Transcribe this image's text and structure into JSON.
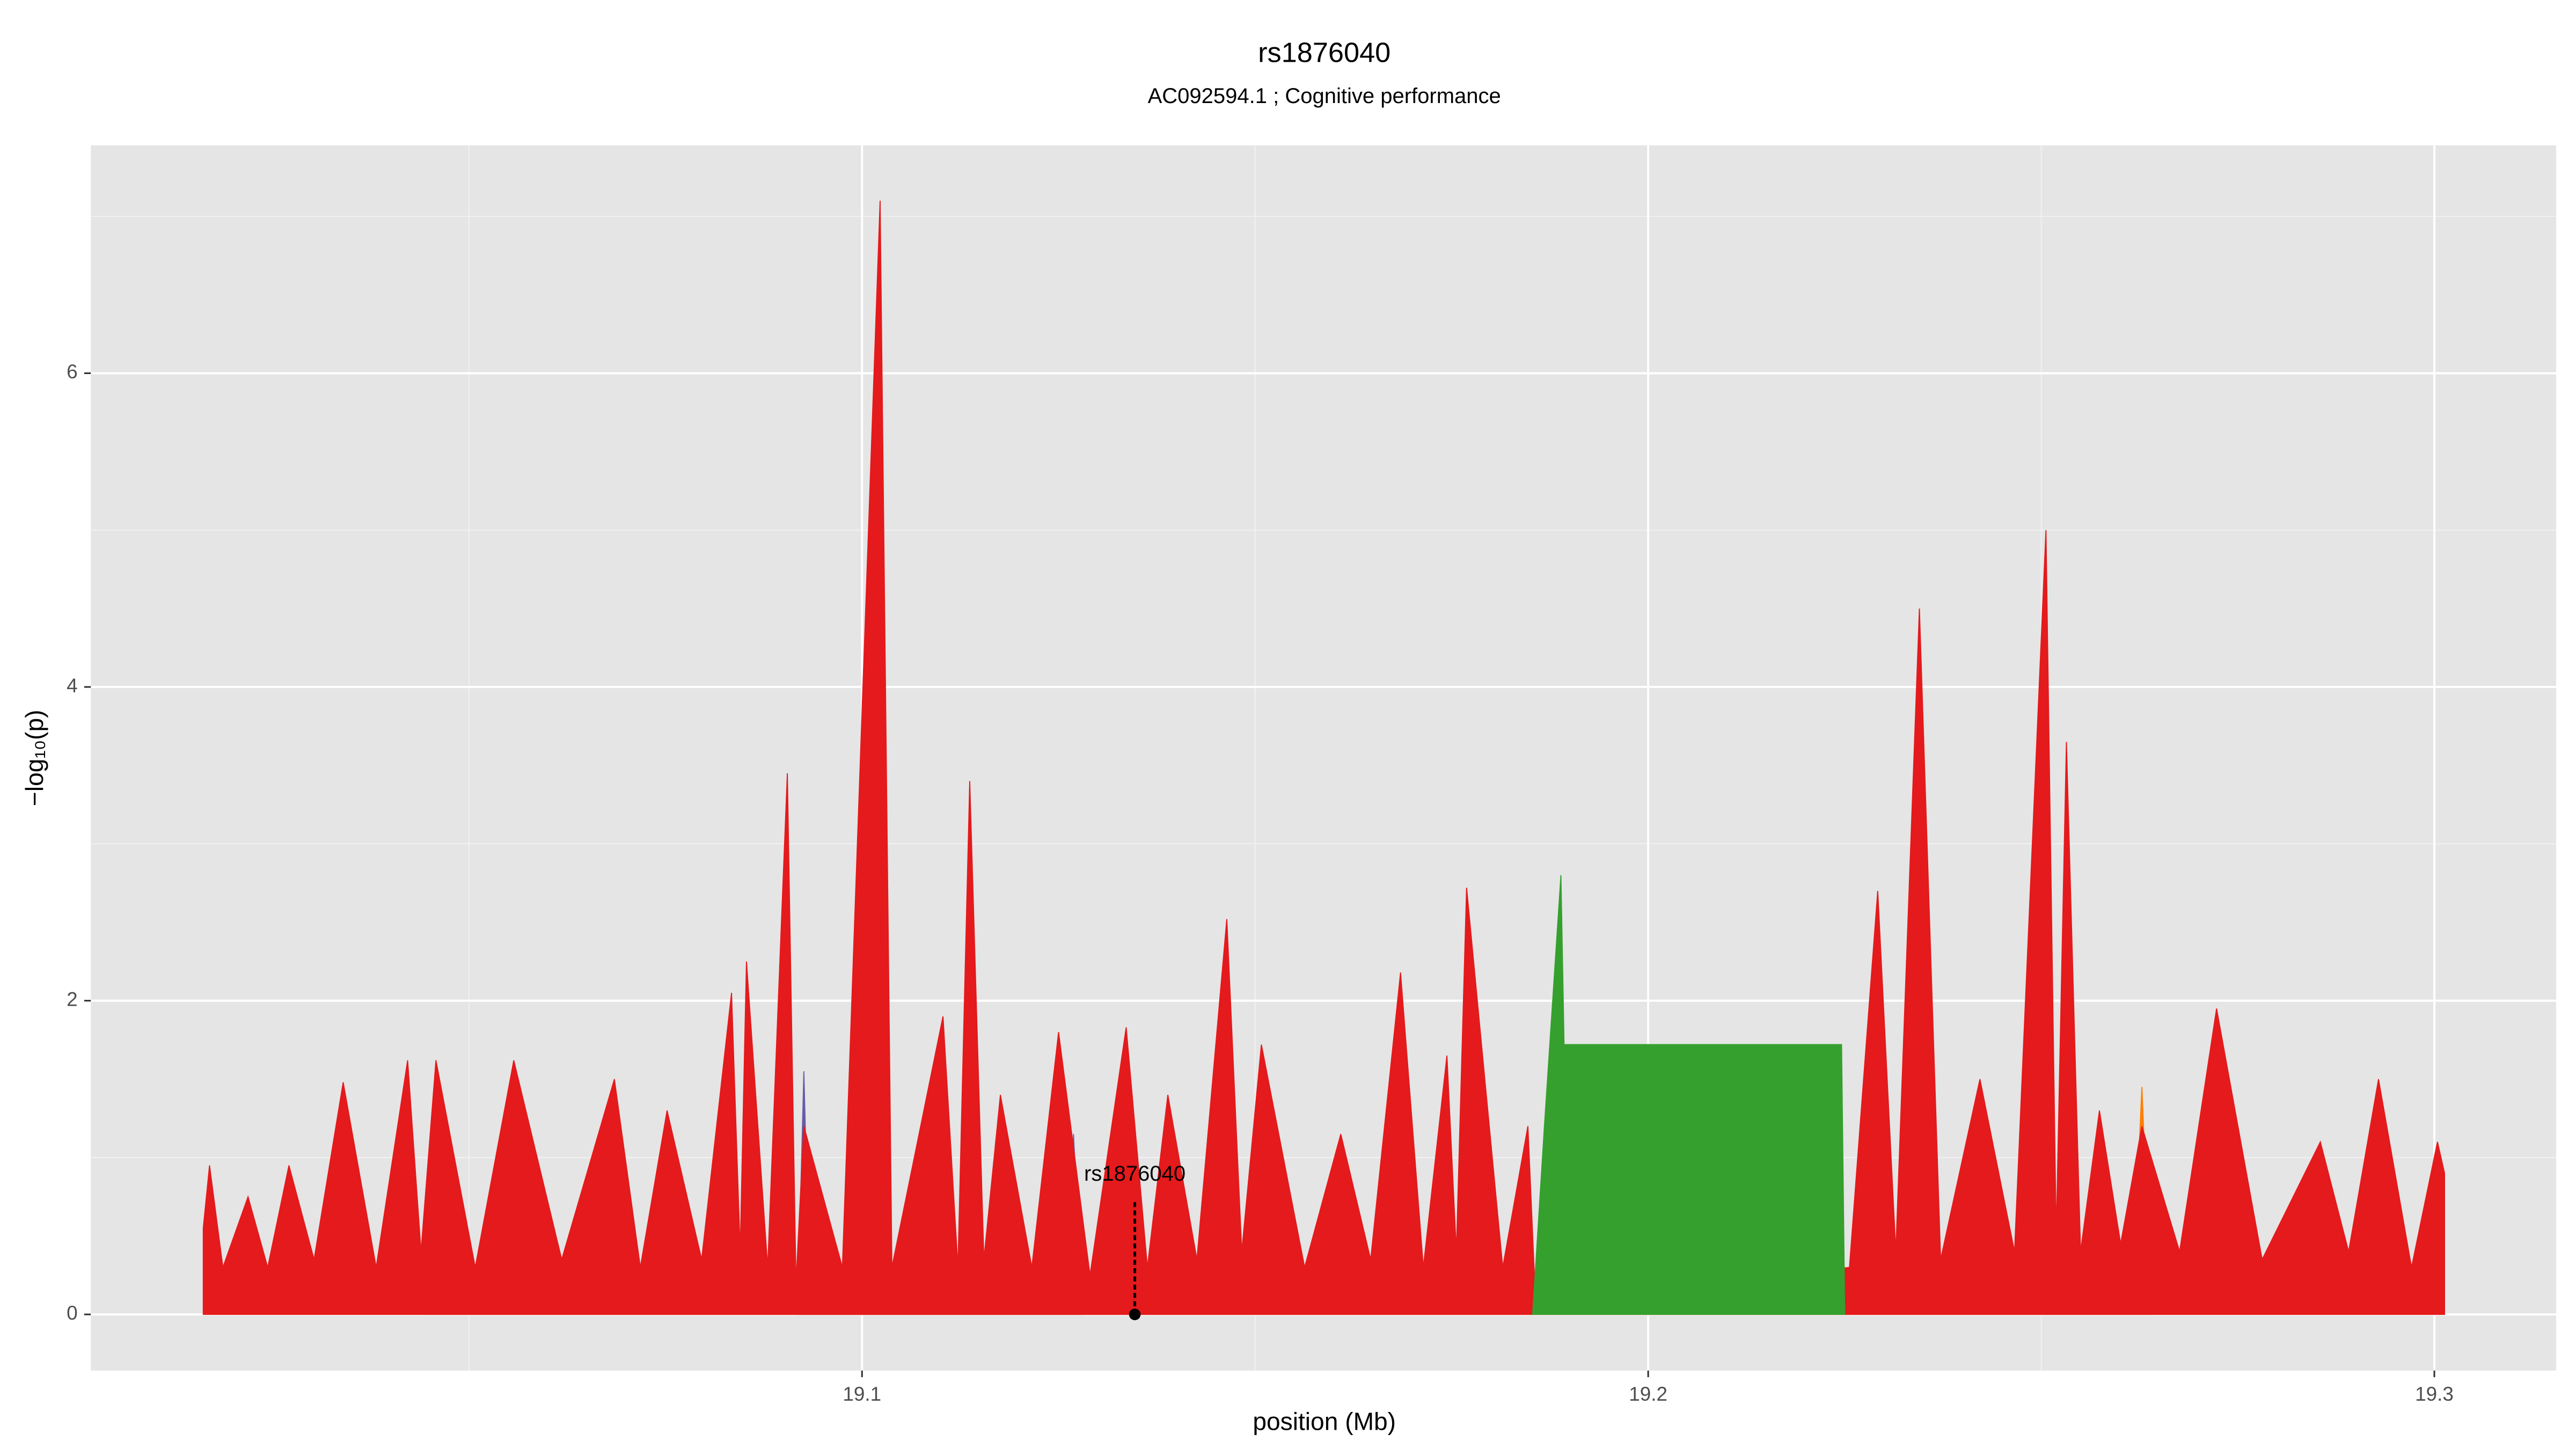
{
  "chart_data": {
    "type": "area",
    "title": "rs1876040",
    "subtitle": "AC092594.1 ; Cognitive performance",
    "x_label": "position (Mb)",
    "y_label": "−log₁₀(p)",
    "xlim": [
      19.0019,
      19.3155
    ],
    "ylim": [
      -0.358,
      7.453
    ],
    "xticks": [
      19.1,
      19.2,
      19.3
    ],
    "yticks": [
      0,
      2,
      4,
      6
    ],
    "grid": true,
    "series": [
      {
        "color": "#ff7f00",
        "x": [
          19.044,
          19.0458,
          19.047,
          19.2615,
          19.2628,
          19.264
        ],
        "values": [
          0,
          1.62,
          0,
          0,
          1.45,
          0
        ]
      },
      {
        "color": "#6a5aa8",
        "x": [
          19.0918,
          19.0926,
          19.0934,
          19.126,
          19.1269,
          19.128
        ],
        "values": [
          0,
          1.55,
          0,
          0,
          1.15,
          0
        ]
      },
      {
        "color": "#e41a1c",
        "x": [
          19.0162,
          19.017,
          19.0187,
          19.0219,
          19.0244,
          19.0271,
          19.0303,
          19.034,
          19.0382,
          19.0422,
          19.0439,
          19.0458,
          19.0508,
          19.0557,
          19.0618,
          19.0685,
          19.0718,
          19.0752,
          19.0796,
          19.0834,
          19.0845,
          19.0853,
          19.088,
          19.0905,
          19.0916,
          19.0926,
          19.0975,
          19.1023,
          19.1038,
          19.1103,
          19.1122,
          19.1137,
          19.1155,
          19.1176,
          19.1216,
          19.125,
          19.129,
          19.1336,
          19.1363,
          19.1389,
          19.1426,
          19.1464,
          19.1483,
          19.1508,
          19.1563,
          19.1609,
          19.1647,
          19.1685,
          19.1714,
          19.1744,
          19.1756,
          19.1769,
          19.1815,
          19.1847,
          19.1857,
          19.2256,
          19.2292,
          19.2315,
          19.2345,
          19.2372,
          19.2422,
          19.2466,
          19.2506,
          19.2519,
          19.2532,
          19.255,
          19.2574,
          19.2601,
          19.2628,
          19.2676,
          19.2723,
          19.2781,
          19.2855,
          19.2891,
          19.2929,
          19.2971,
          19.3004,
          19.3013
        ],
        "values": [
          0.55,
          0.95,
          0.3,
          0.75,
          0.3,
          0.95,
          0.35,
          1.48,
          0.3,
          1.62,
          0.4,
          1.62,
          0.3,
          1.62,
          0.35,
          1.5,
          0.3,
          1.3,
          0.35,
          2.05,
          0.4,
          2.25,
          0.3,
          3.45,
          0.2,
          1.2,
          0.3,
          7.1,
          0.3,
          1.9,
          0.3,
          3.4,
          0.35,
          1.4,
          0.3,
          1.8,
          0.25,
          1.83,
          0.3,
          1.4,
          0.35,
          2.52,
          0.4,
          1.72,
          0.3,
          1.15,
          0.35,
          2.18,
          0.3,
          1.65,
          0.4,
          2.72,
          0.3,
          1.2,
          0.05,
          0.3,
          2.7,
          0.4,
          4.5,
          0.35,
          1.5,
          0.4,
          5.0,
          0.5,
          3.65,
          0.4,
          1.3,
          0.45,
          1.2,
          0.4,
          1.95,
          0.35,
          1.1,
          0.4,
          1.5,
          0.3,
          1.1,
          0.9
        ]
      },
      {
        "color": "#35a02e",
        "x": [
          19.1853,
          19.1868,
          19.1889,
          19.1893,
          19.2246,
          19.225
        ],
        "values": [
          0,
          1.2,
          2.8,
          1.72,
          1.72,
          0
        ]
      }
    ],
    "annotation": {
      "text": "rs1876040",
      "x": 19.1347,
      "y": 0,
      "line_top": 0.72
    }
  }
}
